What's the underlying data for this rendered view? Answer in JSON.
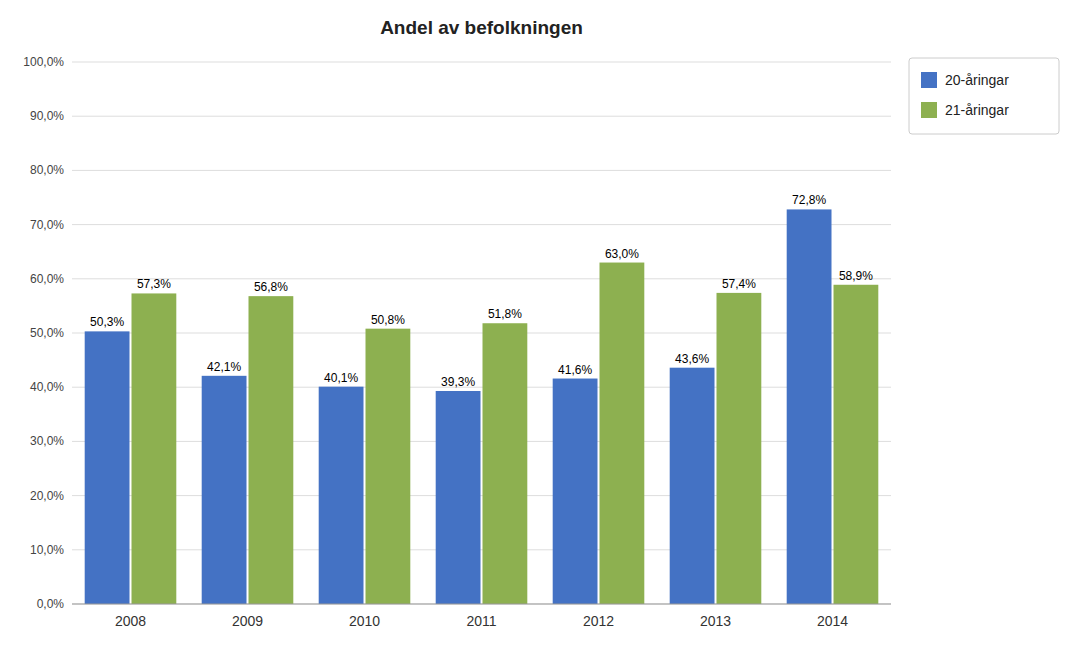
{
  "chart_data": {
    "type": "bar",
    "title": "Andel av befolkningen",
    "categories": [
      "2008",
      "2009",
      "2010",
      "2011",
      "2012",
      "2013",
      "2014"
    ],
    "series": [
      {
        "name": "20-åringar",
        "color": "#4472C4",
        "values": [
          50.3,
          42.1,
          40.1,
          39.3,
          41.6,
          43.6,
          72.8
        ],
        "value_labels": [
          "50,3%",
          "42,1%",
          "40,1%",
          "39,3%",
          "41,6%",
          "43,6%",
          "72,8%"
        ]
      },
      {
        "name": "21-åringar",
        "color": "#8DB050",
        "values": [
          57.3,
          56.8,
          50.8,
          51.8,
          63.0,
          57.4,
          58.9
        ],
        "value_labels": [
          "57,3%",
          "56,8%",
          "50,8%",
          "51,8%",
          "63,0%",
          "57,4%",
          "58,9%"
        ]
      }
    ],
    "ylim": [
      0,
      100
    ],
    "yticks": [
      {
        "value": 0,
        "label": "0,0%"
      },
      {
        "value": 10,
        "label": "10,0%"
      },
      {
        "value": 20,
        "label": "20,0%"
      },
      {
        "value": 30,
        "label": "30,0%"
      },
      {
        "value": 40,
        "label": "40,0%"
      },
      {
        "value": 50,
        "label": "50,0%"
      },
      {
        "value": 60,
        "label": "60,0%"
      },
      {
        "value": 70,
        "label": "70,0%"
      },
      {
        "value": 80,
        "label": "80,0%"
      },
      {
        "value": 90,
        "label": "90,0%"
      },
      {
        "value": 100,
        "label": "100,0%"
      }
    ],
    "grid": true,
    "legend": "upper right",
    "data_labels": true
  }
}
